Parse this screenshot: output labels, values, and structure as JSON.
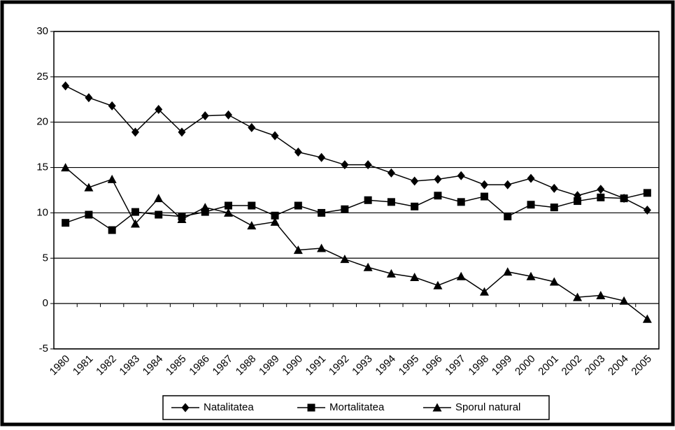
{
  "chart_data": {
    "type": "line",
    "categories": [
      "1980",
      "1981",
      "1982",
      "1983",
      "1984",
      "1985",
      "1986",
      "1987",
      "1988",
      "1989",
      "1990",
      "1991",
      "1992",
      "1993",
      "1994",
      "1995",
      "1996",
      "1997",
      "1998",
      "1999",
      "2000",
      "2001",
      "2002",
      "2003",
      "2004",
      "2005"
    ],
    "series": [
      {
        "name": "Natalitatea",
        "color": "#000000",
        "marker": "diamond",
        "values": [
          24,
          22.7,
          21.8,
          18.9,
          21.4,
          18.9,
          20.7,
          20.8,
          19.4,
          18.5,
          16.7,
          16.1,
          15.3,
          15.3,
          14.4,
          13.5,
          13.7,
          14.1,
          13.1,
          13.1,
          13.8,
          12.7,
          11.9,
          12.6,
          11.6,
          10.3
        ]
      },
      {
        "name": "Mortalitatea",
        "color": "#000000",
        "marker": "square",
        "values": [
          8.9,
          9.8,
          8.1,
          10.1,
          9.8,
          9.6,
          10.1,
          10.8,
          10.8,
          9.7,
          10.8,
          10.0,
          10.4,
          11.4,
          11.2,
          10.7,
          11.9,
          11.2,
          11.8,
          9.6,
          10.9,
          10.6,
          11.3,
          11.7,
          11.6,
          12.2
        ]
      },
      {
        "name": "Sporul natural",
        "color": "#000000",
        "marker": "triangle",
        "values": [
          15.0,
          12.8,
          13.7,
          8.8,
          11.6,
          9.3,
          10.6,
          10.0,
          8.6,
          9.0,
          5.9,
          6.1,
          4.9,
          4.0,
          3.3,
          2.9,
          2.0,
          3.0,
          1.3,
          3.5,
          3.0,
          2.4,
          0.7,
          0.9,
          0.3,
          -1.7
        ]
      }
    ],
    "ylim": [
      -5,
      30
    ],
    "yticks": [
      -5,
      0,
      5,
      10,
      15,
      20,
      25,
      30
    ],
    "grid": true,
    "legend": "bottom"
  }
}
